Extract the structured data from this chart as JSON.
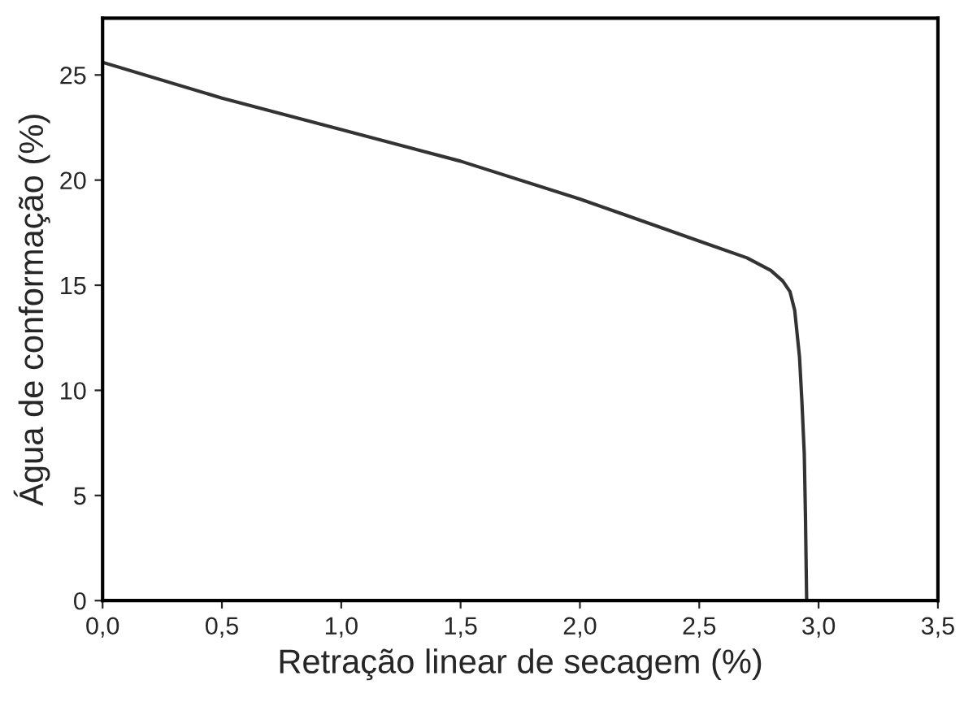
{
  "chart_data": {
    "type": "line",
    "xlabel": "Retração linear de secagem (%)",
    "ylabel": "Água de conformação (%)",
    "series": [
      {
        "color": "#333333",
        "x": [
          0,
          0.5,
          1.0,
          1.5,
          2.0,
          2.5,
          2.7,
          2.8,
          2.85,
          2.88,
          2.9,
          2.92,
          2.93,
          2.94,
          2.945,
          2.95
        ],
        "values": [
          25.6,
          23.9,
          22.4,
          20.9,
          19.1,
          17.1,
          16.3,
          15.7,
          15.2,
          14.7,
          13.8,
          11.6,
          9.5,
          7.0,
          4.0,
          0
        ]
      }
    ],
    "xlim": [
      0,
      3.5
    ],
    "ylim": [
      0,
      27.7
    ],
    "xticks": [
      {
        "value": 0,
        "label": "0,0"
      },
      {
        "value": 0.5,
        "label": "0,5"
      },
      {
        "value": 1.0,
        "label": "1,0"
      },
      {
        "value": 1.5,
        "label": "1,5"
      },
      {
        "value": 2.0,
        "label": "2,0"
      },
      {
        "value": 2.5,
        "label": "2,5"
      },
      {
        "value": 3.0,
        "label": "3,0"
      },
      {
        "value": 3.5,
        "label": "3,5"
      }
    ],
    "yticks": [
      0,
      5,
      10,
      15,
      20,
      25
    ],
    "grid": false,
    "legend": false,
    "marker": "none",
    "line_style": "solid"
  }
}
